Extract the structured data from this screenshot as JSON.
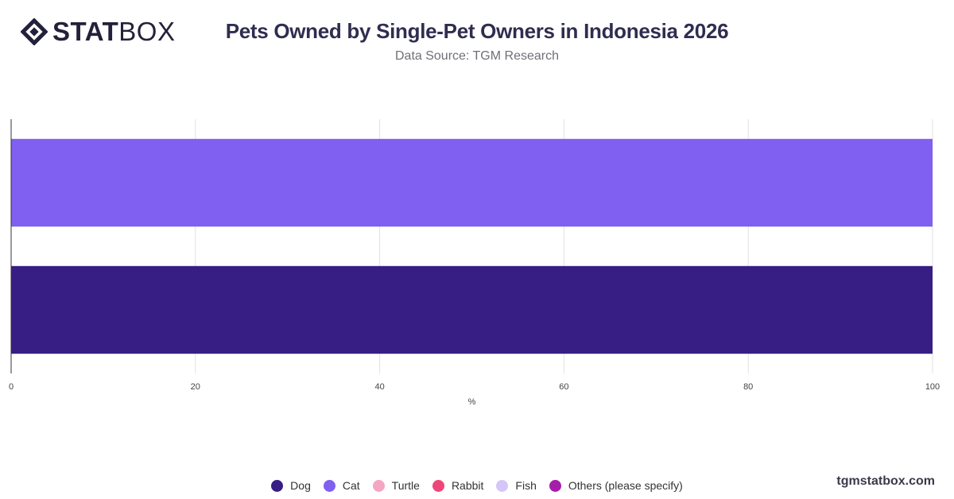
{
  "brand": {
    "logo_bold": "STAT",
    "logo_light": "BOX",
    "footer": "tgmstatbox.com"
  },
  "chart_data": {
    "type": "bar",
    "orientation": "horizontal",
    "stacked": true,
    "title": "Pets Owned by Single-Pet Owners in Indonesia 2026",
    "subtitle": "Data Source: TGM Research",
    "xlabel": "%",
    "ylabel": "",
    "xlim": [
      0,
      100
    ],
    "x_ticks": [
      0,
      20,
      40,
      60,
      80,
      100
    ],
    "grid": true,
    "legend_position": "bottom",
    "series": [
      {
        "name": "Dog",
        "color": "#371e85"
      },
      {
        "name": "Cat",
        "color": "#7f60f0"
      },
      {
        "name": "Turtle",
        "color": "#f4a6c2"
      },
      {
        "name": "Rabbit",
        "color": "#f0457a"
      },
      {
        "name": "Fish",
        "color": "#d4c6f8"
      },
      {
        "name": "Others (please specify)",
        "color": "#a51fa8"
      }
    ],
    "bars": [
      {
        "series": "Cat",
        "value": 100
      },
      {
        "series": "Dog",
        "value": 100
      }
    ]
  }
}
